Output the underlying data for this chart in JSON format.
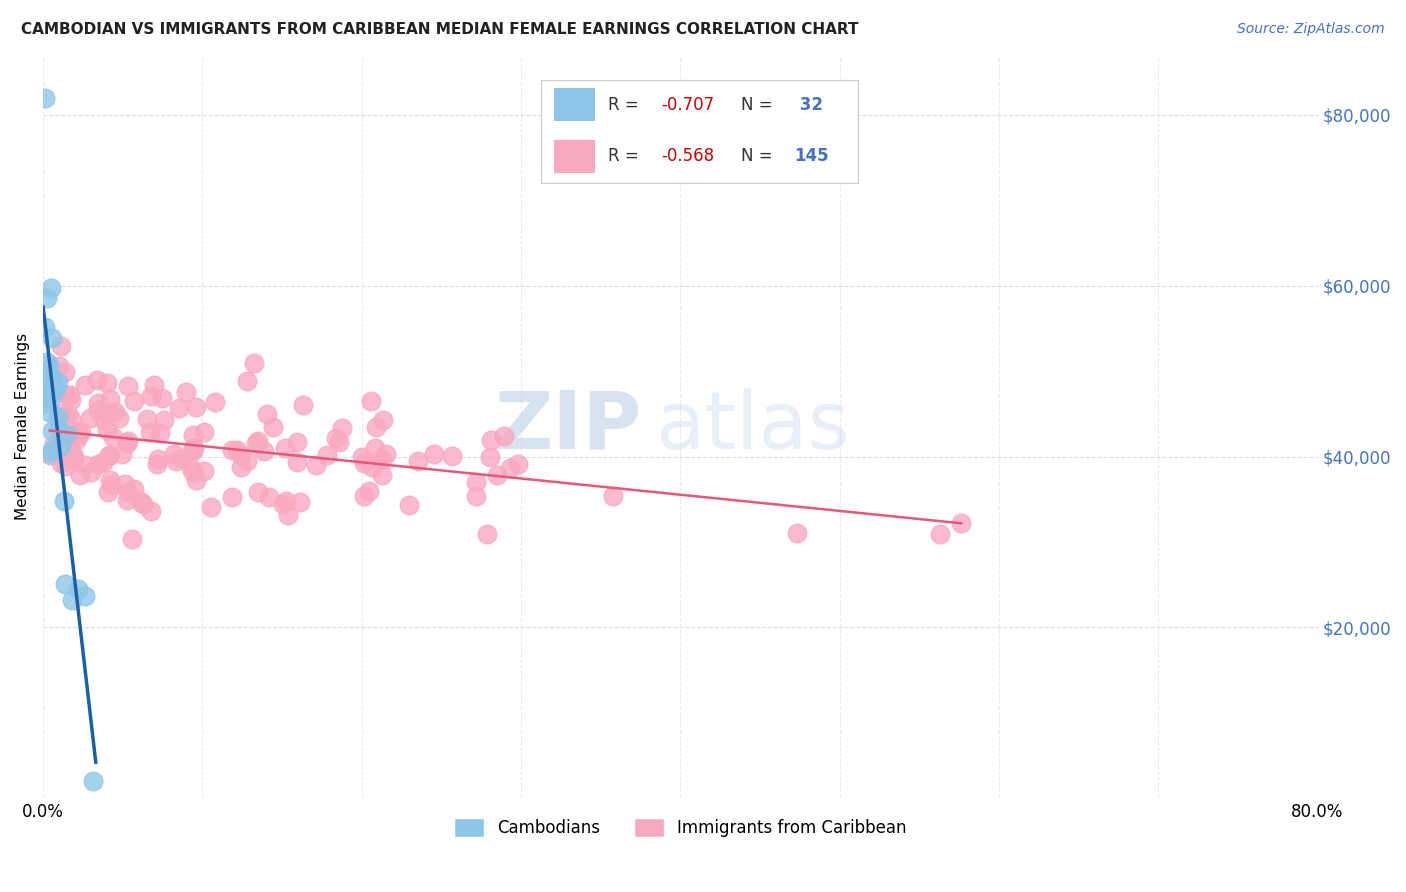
{
  "title": "CAMBODIAN VS IMMIGRANTS FROM CARIBBEAN MEDIAN FEMALE EARNINGS CORRELATION CHART",
  "source": "Source: ZipAtlas.com",
  "ylabel": "Median Female Earnings",
  "ytick_positions": [
    20000,
    40000,
    60000,
    80000
  ],
  "ytick_labels": [
    "$20,000",
    "$40,000",
    "$60,000",
    "$80,000"
  ],
  "legend_labels": [
    "Cambodians",
    "Immigrants from Caribbean"
  ],
  "R_cambodian": -0.707,
  "N_cambodian": 32,
  "R_caribbean": -0.568,
  "N_caribbean": 145,
  "cambodian_color": "#8ec6e8",
  "caribbean_color": "#f9a8c0",
  "cambodian_line_color": "#1a5fa8",
  "caribbean_line_color": "#e8567a",
  "watermark_zip": "ZIP",
  "watermark_atlas": "atlas",
  "background_color": "#ffffff",
  "xlim": [
    0.0,
    0.8
  ],
  "ylim": [
    0,
    87000
  ],
  "xtick_show": [
    "0.0%",
    "80.0%"
  ],
  "grid_color": "#cccccc",
  "title_color": "#222222",
  "source_color": "#4472c4",
  "ytick_color": "#4472c4",
  "legend_box_color": "#f0f0f0"
}
